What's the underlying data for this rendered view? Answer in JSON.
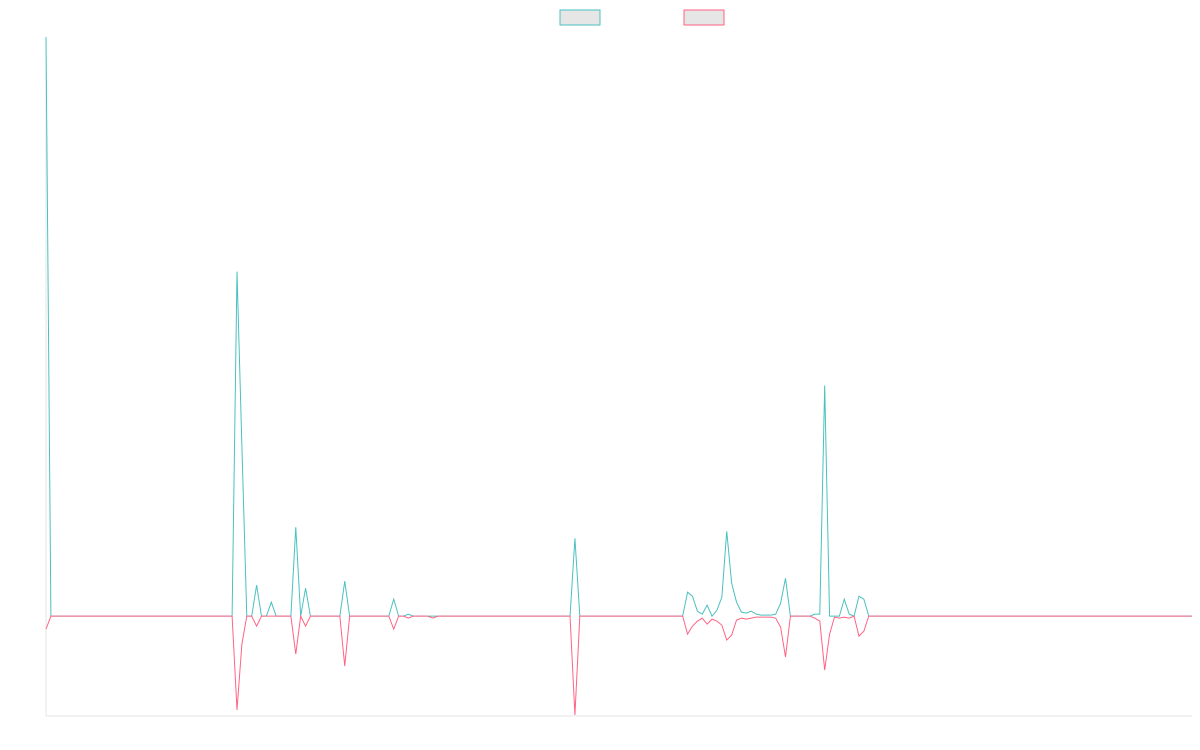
{
  "chart_data": {
    "type": "line",
    "legend": "top",
    "ylim": [
      -100,
      580
    ],
    "series": [
      {
        "color": "#4bc0c0",
        "values": [
          580,
          0,
          0,
          0,
          0,
          0,
          0,
          0,
          0,
          0,
          0,
          0,
          0,
          0,
          0,
          0,
          0,
          0,
          0,
          0,
          0,
          0,
          0,
          0,
          0,
          0,
          0,
          0,
          0,
          0,
          0,
          0,
          0,
          0,
          0,
          0,
          0,
          0,
          0,
          345,
          170,
          0,
          0,
          31,
          0,
          0,
          14,
          0,
          0,
          0,
          0,
          89,
          0,
          28,
          0,
          0,
          0,
          0,
          0,
          0,
          0,
          35,
          0,
          0,
          0,
          0,
          0,
          0,
          0,
          0,
          0,
          17,
          0,
          0,
          2,
          0,
          0,
          0,
          0,
          0,
          0,
          0,
          0,
          0,
          0,
          0,
          0,
          0,
          0,
          0,
          0,
          0,
          0,
          0,
          0,
          0,
          0,
          0,
          0,
          0,
          0,
          0,
          0,
          0,
          0,
          0,
          0,
          0,
          78,
          0,
          0,
          0,
          0,
          0,
          0,
          0,
          0,
          0,
          0,
          0,
          0,
          0,
          0,
          0,
          0,
          0,
          0,
          0,
          0,
          0,
          0,
          24,
          20,
          5,
          2,
          11,
          0,
          6,
          19,
          85,
          33,
          14,
          4,
          3,
          5,
          2,
          1,
          1,
          1,
          2,
          13,
          38,
          0,
          0,
          0,
          0,
          0,
          2,
          2,
          231,
          0,
          0,
          0,
          17,
          2,
          0,
          20,
          17,
          0,
          0,
          0,
          0,
          0,
          0,
          0,
          0,
          0,
          0,
          0,
          0,
          0,
          0,
          0,
          0,
          0,
          0,
          0,
          0,
          0,
          0,
          0,
          0,
          0,
          0,
          0,
          0,
          0,
          0,
          0,
          0,
          0,
          0,
          0,
          0,
          0,
          0,
          0,
          0,
          0,
          0,
          0,
          0,
          0,
          0,
          0,
          0,
          0,
          0,
          0,
          0,
          0,
          0,
          0,
          0,
          0,
          0,
          0,
          0,
          0,
          0,
          0,
          0,
          0,
          0,
          0
        ]
      },
      {
        "color": "#ff6384",
        "values": [
          -13,
          0,
          0,
          0,
          0,
          0,
          0,
          0,
          0,
          0,
          0,
          0,
          0,
          0,
          0,
          0,
          0,
          0,
          0,
          0,
          0,
          0,
          0,
          0,
          0,
          0,
          0,
          0,
          0,
          0,
          0,
          0,
          0,
          0,
          0,
          0,
          0,
          0,
          0,
          -94,
          -28,
          0,
          0,
          -10,
          0,
          0,
          0,
          0,
          0,
          0,
          0,
          -38,
          0,
          -10,
          0,
          0,
          0,
          0,
          0,
          0,
          0,
          -50,
          0,
          0,
          0,
          0,
          0,
          0,
          0,
          0,
          0,
          -13,
          0,
          0,
          -2,
          0,
          0,
          0,
          0,
          -2,
          0,
          0,
          0,
          0,
          0,
          0,
          0,
          0,
          0,
          0,
          0,
          0,
          0,
          0,
          0,
          0,
          0,
          0,
          0,
          0,
          0,
          0,
          0,
          0,
          0,
          0,
          0,
          0,
          -99,
          0,
          0,
          0,
          0,
          0,
          0,
          0,
          0,
          0,
          0,
          0,
          0,
          0,
          0,
          0,
          0,
          0,
          0,
          0,
          0,
          0,
          0,
          -18,
          -10,
          -5,
          -2,
          -8,
          -3,
          -5,
          -9,
          -24,
          -19,
          -4,
          -2,
          -3,
          -2,
          -1,
          -1,
          -1,
          -1,
          -2,
          -11,
          -41,
          0,
          0,
          0,
          0,
          0,
          -2,
          -5,
          -54,
          -18,
          -1,
          -2,
          -1,
          -2,
          0,
          -20,
          -15,
          0,
          0,
          0,
          0,
          0,
          0,
          0,
          0,
          0,
          0,
          0,
          0,
          0,
          0,
          0,
          0,
          0,
          0,
          0,
          0,
          0,
          0,
          0,
          0,
          0,
          0,
          0,
          0,
          0,
          0,
          0,
          0,
          0,
          0,
          0,
          0,
          0,
          0,
          0,
          0,
          0,
          0,
          0,
          0,
          0,
          0,
          0,
          0,
          0,
          0,
          0,
          0,
          0,
          0,
          0,
          0,
          0,
          0,
          0,
          0,
          0,
          0,
          0,
          0,
          0,
          0,
          0
        ]
      }
    ]
  }
}
